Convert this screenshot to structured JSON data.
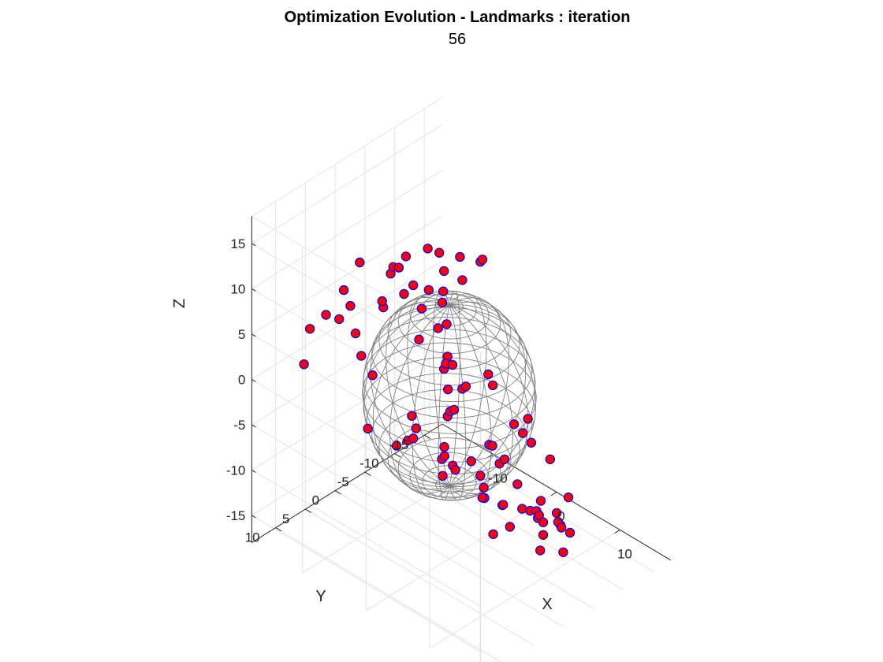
{
  "chart_data": {
    "type": "scatter",
    "title": "Optimization Evolution - Landmarks : iteration",
    "subtitle": "56",
    "xlabel": "X",
    "ylabel": "Y",
    "zlabel": "Z",
    "xlim": [
      -18,
      18
    ],
    "ylim": [
      -18,
      14
    ],
    "zlim": [
      -18,
      18
    ],
    "xticks": [
      -10,
      0,
      10
    ],
    "yticks": [
      -15,
      -10,
      -5,
      0,
      5,
      10
    ],
    "zticks": [
      -15,
      -10,
      -5,
      0,
      5,
      10,
      15
    ],
    "grid": true,
    "view": "3d",
    "sphere": {
      "center": [
        0,
        0,
        0
      ],
      "radius": 10,
      "color": "#808080"
    },
    "marker": {
      "face_color": "#ff0000",
      "edge_color": "#0000ff"
    },
    "points": [
      [
        -2.0,
        1.5,
        16.0
      ],
      [
        1.2,
        -0.5,
        15.6
      ],
      [
        -4.5,
        2.5,
        14.5
      ],
      [
        3.0,
        -2.0,
        15.2
      ],
      [
        1.5,
        2.5,
        15.4
      ],
      [
        -1.0,
        5.0,
        13.8
      ],
      [
        2.5,
        0.5,
        14.0
      ],
      [
        0.5,
        4.0,
        13.5
      ],
      [
        -3.0,
        -1.5,
        13.9
      ],
      [
        4.5,
        6.0,
        14.6
      ],
      [
        -1.5,
        9.5,
        13.0
      ],
      [
        1.0,
        -4.5,
        13.6
      ],
      [
        -5.5,
        4.0,
        12.8
      ],
      [
        -6.5,
        2.5,
        12.5
      ],
      [
        -8.5,
        6.0,
        13.6
      ],
      [
        -3.2,
        4.2,
        11.6
      ],
      [
        -4.5,
        6.5,
        11.2
      ],
      [
        -7.5,
        0.5,
        11.2
      ],
      [
        -0.7,
        3.9,
        10.9
      ],
      [
        -0.5,
        0.5,
        11.5
      ],
      [
        -11.0,
        6.0,
        9.5
      ],
      [
        -9.5,
        6.5,
        8.6
      ],
      [
        -11.0,
        9.0,
        8.0
      ],
      [
        -10.8,
        7.0,
        6.8
      ],
      [
        -14.0,
        8.5,
        5.0
      ],
      [
        -11.5,
        3.5,
        3.5
      ],
      [
        -12.0,
        2.0,
        0.2
      ],
      [
        -14.0,
        9.5,
        1.5
      ],
      [
        1.5,
        3.5,
        9.5
      ],
      [
        0.5,
        1.0,
        8.5
      ],
      [
        -1.5,
        3.5,
        7.0
      ],
      [
        3.0,
        3.5,
        7.0
      ],
      [
        9.0,
        10.5,
        11.0
      ],
      [
        11.5,
        12.5,
        10.6
      ],
      [
        10.0,
        8.5,
        8.4
      ],
      [
        11.5,
        9.5,
        9.7
      ],
      [
        9.5,
        10.0,
        6.3
      ],
      [
        9.0,
        8.8,
        5.8
      ],
      [
        10.5,
        11.5,
        6.8
      ],
      [
        8.0,
        8.0,
        10.0
      ],
      [
        8.0,
        2.0,
        6.5
      ],
      [
        -1.5,
        -1.0,
        2.5
      ],
      [
        4.5,
        -2.5,
        2.0
      ],
      [
        10.5,
        -2.0,
        1.0
      ],
      [
        13.0,
        3.0,
        3.5
      ],
      [
        12.5,
        1.0,
        1.5
      ],
      [
        10.5,
        4.5,
        0.8
      ],
      [
        14.0,
        3.5,
        -2.5
      ],
      [
        11.5,
        3.0,
        -1.0
      ],
      [
        14.0,
        6.5,
        1.0
      ],
      [
        14.0,
        -2.0,
        -2.0
      ],
      [
        11.5,
        -1.5,
        -1.0
      ],
      [
        -13.5,
        -1.5,
        -4.0
      ],
      [
        -10.5,
        2.5,
        -7.0
      ],
      [
        -7.5,
        -1.0,
        -8.5
      ],
      [
        -4.5,
        1.5,
        -3.5
      ],
      [
        3.5,
        -3.5,
        -5.5
      ],
      [
        -8.5,
        -3.0,
        -9.5
      ],
      [
        -9.0,
        -4.0,
        -9.0
      ],
      [
        -5.5,
        -5.0,
        -10.0
      ],
      [
        -13.0,
        -5.0,
        -13.0
      ],
      [
        -5.0,
        -9.0,
        -13.0
      ],
      [
        -3.5,
        -9.5,
        -15.5
      ],
      [
        -6.5,
        -7.5,
        -13.5
      ],
      [
        -4.5,
        -10.0,
        -14.8
      ],
      [
        -7.5,
        -9.0,
        -15.0
      ],
      [
        -1.5,
        -10.5,
        -17.0
      ],
      [
        -9.5,
        -9.0,
        -16.5
      ],
      [
        2.5,
        -7.5,
        -16.5
      ],
      [
        -1.5,
        -7.5,
        -15.0
      ],
      [
        0.5,
        -8.5,
        -15.3
      ],
      [
        3.5,
        -8.5,
        -14.5
      ],
      [
        8.5,
        -4.5,
        -11.0
      ],
      [
        11.5,
        -3.5,
        -12.0
      ],
      [
        10.5,
        -7.5,
        -13.0
      ],
      [
        8.0,
        -9.5,
        -13.5
      ],
      [
        5.5,
        -9.5,
        -13.2
      ],
      [
        2.0,
        -12.5,
        -17.0
      ],
      [
        4.0,
        -11.5,
        -17.0
      ],
      [
        4.0,
        -14.0,
        -18.0
      ],
      [
        5.0,
        -13.5,
        -18.0
      ],
      [
        1.0,
        -14.0,
        -18.5
      ],
      [
        7.5,
        -12.0,
        -13.0
      ],
      [
        11.5,
        -3.0,
        -13.5
      ],
      [
        13.0,
        -1.0,
        -8.5
      ],
      [
        9.5,
        -9.0,
        -17.0
      ],
      [
        -2.0,
        -9.5,
        -20.0
      ],
      [
        -7.0,
        -13.0,
        -19.5
      ],
      [
        4.0,
        -16.0,
        -20.0
      ],
      [
        -12.5,
        -12.5,
        -17.0
      ],
      [
        -11.5,
        -11.0,
        -16.3
      ]
    ]
  }
}
